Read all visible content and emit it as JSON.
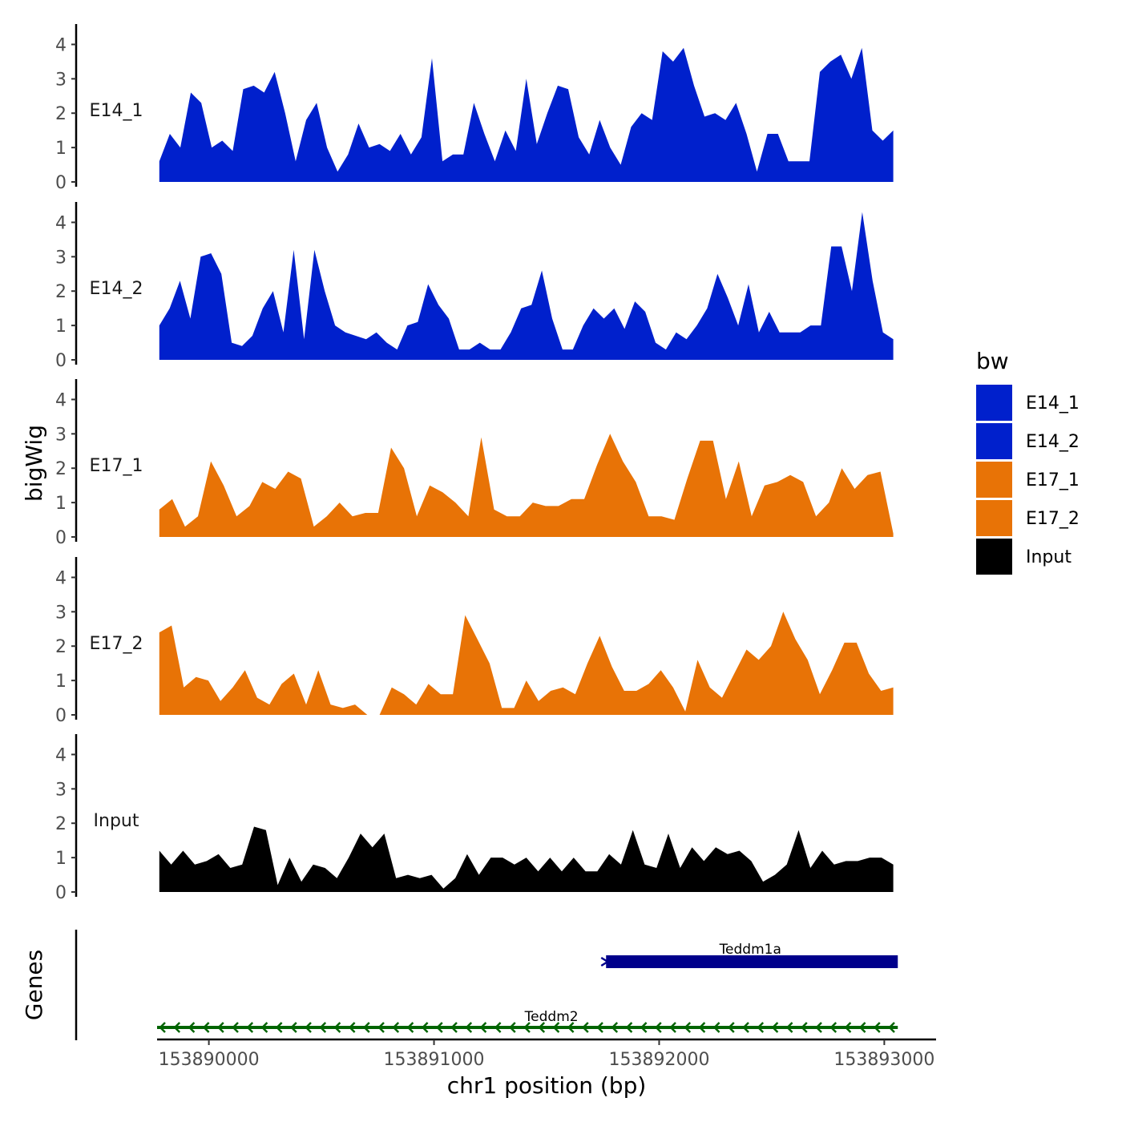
{
  "chart_data": {
    "type": "area",
    "chromosome": "chr1",
    "xlabel": "chr1 position (bp)",
    "ylabel": "bigWig",
    "genes_label": "Genes",
    "xlim": [
      153889770,
      153893230
    ],
    "ylim": [
      0,
      4.5
    ],
    "data_x_range": [
      153889780,
      153893040
    ],
    "x_ticks": [
      153890000,
      153891000,
      153892000,
      153893000
    ],
    "x_tick_labels": [
      "153890000",
      "153891000",
      "153892000",
      "153893000"
    ],
    "y_ticks": [
      0,
      1,
      2,
      3,
      4
    ],
    "y_tick_labels": [
      "0",
      "1",
      "2",
      "3",
      "4"
    ],
    "legend": {
      "title": "bw",
      "entries": [
        {
          "name": "E14_1",
          "color": "#0020cc"
        },
        {
          "name": "E14_2",
          "color": "#0020cc"
        },
        {
          "name": "E17_1",
          "color": "#e87306"
        },
        {
          "name": "E17_2",
          "color": "#e87306"
        },
        {
          "name": "Input",
          "color": "#000000"
        }
      ]
    },
    "series": [
      {
        "name": "E14_1",
        "color": "#0020cc",
        "values": [
          0.6,
          1.4,
          1.0,
          2.6,
          2.3,
          1.0,
          1.2,
          0.9,
          2.7,
          2.8,
          2.6,
          3.2,
          2.0,
          0.6,
          1.8,
          2.3,
          1.0,
          0.3,
          0.8,
          1.7,
          1.0,
          1.1,
          0.9,
          1.4,
          0.8,
          1.3,
          3.6,
          0.6,
          0.8,
          0.8,
          2.3,
          1.4,
          0.6,
          1.5,
          0.9,
          3.0,
          1.1,
          2.0,
          2.8,
          2.7,
          1.3,
          0.8,
          1.8,
          1.0,
          0.5,
          1.6,
          2.0,
          1.8,
          3.8,
          3.5,
          3.9,
          2.8,
          1.9,
          2.0,
          1.8,
          2.3,
          1.4,
          0.3,
          1.4,
          1.4,
          0.6,
          0.6,
          0.6,
          3.2,
          3.5,
          3.7,
          3.0,
          3.9,
          1.5,
          1.2,
          1.5
        ]
      },
      {
        "name": "E14_2",
        "color": "#0020cc",
        "values": [
          1.0,
          1.5,
          2.3,
          1.2,
          3.0,
          3.1,
          2.5,
          0.5,
          0.4,
          0.7,
          1.5,
          2.0,
          0.8,
          3.2,
          0.6,
          3.2,
          2.0,
          1.0,
          0.8,
          0.7,
          0.6,
          0.8,
          0.5,
          0.3,
          1.0,
          1.1,
          2.2,
          1.6,
          1.2,
          0.3,
          0.3,
          0.5,
          0.3,
          0.3,
          0.8,
          1.5,
          1.6,
          2.6,
          1.2,
          0.3,
          0.3,
          1.0,
          1.5,
          1.2,
          1.5,
          0.9,
          1.7,
          1.4,
          0.5,
          0.3,
          0.8,
          0.6,
          1.0,
          1.5,
          2.5,
          1.8,
          1.0,
          2.2,
          0.8,
          1.4,
          0.8,
          0.8,
          0.8,
          1.0,
          1.0,
          3.3,
          3.3,
          2.0,
          4.3,
          2.3,
          0.8,
          0.6
        ]
      },
      {
        "name": "E17_1",
        "color": "#e87306",
        "values": [
          0.8,
          1.1,
          0.3,
          0.6,
          2.2,
          1.5,
          0.6,
          0.9,
          1.6,
          1.4,
          1.9,
          1.7,
          0.3,
          0.6,
          1.0,
          0.6,
          0.7,
          0.7,
          2.6,
          2.0,
          0.6,
          1.5,
          1.3,
          1.0,
          0.6,
          2.9,
          0.8,
          0.6,
          0.6,
          1.0,
          0.9,
          0.9,
          1.1,
          1.1,
          2.1,
          3.0,
          2.2,
          1.6,
          0.6,
          0.6,
          0.5,
          1.7,
          2.8,
          2.8,
          1.1,
          2.2,
          0.6,
          1.5,
          1.6,
          1.8,
          1.6,
          0.6,
          1.0,
          2.0,
          1.4,
          1.8,
          1.9,
          0.1
        ]
      },
      {
        "name": "E17_2",
        "color": "#e87306",
        "values": [
          2.4,
          2.6,
          0.8,
          1.1,
          1.0,
          0.4,
          0.8,
          1.3,
          0.5,
          0.3,
          0.9,
          1.2,
          0.3,
          1.3,
          0.3,
          0.2,
          0.3,
          0.0,
          0.0,
          0.8,
          0.6,
          0.3,
          0.9,
          0.6,
          0.6,
          2.9,
          2.2,
          1.5,
          0.2,
          0.2,
          1.0,
          0.4,
          0.7,
          0.8,
          0.6,
          1.5,
          2.3,
          1.4,
          0.7,
          0.7,
          0.9,
          1.3,
          0.8,
          0.1,
          1.6,
          0.8,
          0.5,
          1.2,
          1.9,
          1.6,
          2.0,
          3.0,
          2.2,
          1.6,
          0.6,
          1.3,
          2.1,
          2.1,
          1.2,
          0.7,
          0.8
        ]
      },
      {
        "name": "Input",
        "color": "#000000",
        "values": [
          1.2,
          0.8,
          1.2,
          0.8,
          0.9,
          1.1,
          0.7,
          0.8,
          1.9,
          1.8,
          0.2,
          1.0,
          0.3,
          0.8,
          0.7,
          0.4,
          1.0,
          1.7,
          1.3,
          1.7,
          0.4,
          0.5,
          0.4,
          0.5,
          0.1,
          0.4,
          1.1,
          0.5,
          1.0,
          1.0,
          0.8,
          1.0,
          0.6,
          1.0,
          0.6,
          1.0,
          0.6,
          0.6,
          1.1,
          0.8,
          1.8,
          0.8,
          0.7,
          1.7,
          0.7,
          1.3,
          0.9,
          1.3,
          1.1,
          1.2,
          0.9,
          0.3,
          0.5,
          0.8,
          1.8,
          0.7,
          1.2,
          0.8,
          0.9,
          0.9,
          1.0,
          1.0,
          0.8
        ]
      }
    ],
    "genes": [
      {
        "name": "Teddm1a",
        "start": 153891750,
        "end": 153893060,
        "strand": "+",
        "color": "#00008b",
        "row": 0
      },
      {
        "name": "Teddm2",
        "start": 153889770,
        "end": 153893060,
        "strand": "-",
        "color": "#006400",
        "row": 1
      }
    ]
  }
}
